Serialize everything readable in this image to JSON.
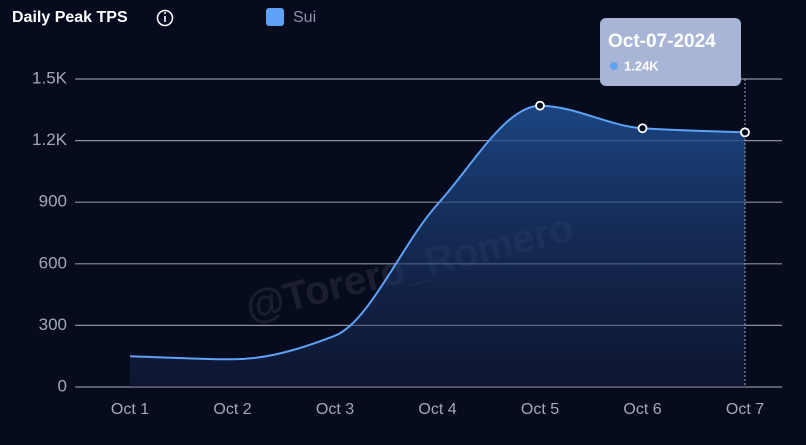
{
  "chart_data": {
    "type": "line",
    "title": "Daily Peak TPS",
    "categories": [
      "Oct 1",
      "Oct 2",
      "Oct 3",
      "Oct 4",
      "Oct 5",
      "Oct 6",
      "Oct 7"
    ],
    "series": [
      {
        "name": "Sui",
        "color": "#5ea2f5",
        "values": [
          150,
          135,
          250,
          890,
          1370,
          1260,
          1240
        ]
      }
    ],
    "ylim": [
      0,
      1500
    ],
    "yticks": [
      0,
      300,
      600,
      900,
      {
        "value": 1200,
        "label": "1.2K"
      },
      {
        "value": 1500,
        "label": "1.5K"
      }
    ],
    "grid": true,
    "watermark": "@Torero_Romero",
    "tooltip": {
      "date": "Oct-07-2024",
      "label": "1.24K"
    }
  }
}
